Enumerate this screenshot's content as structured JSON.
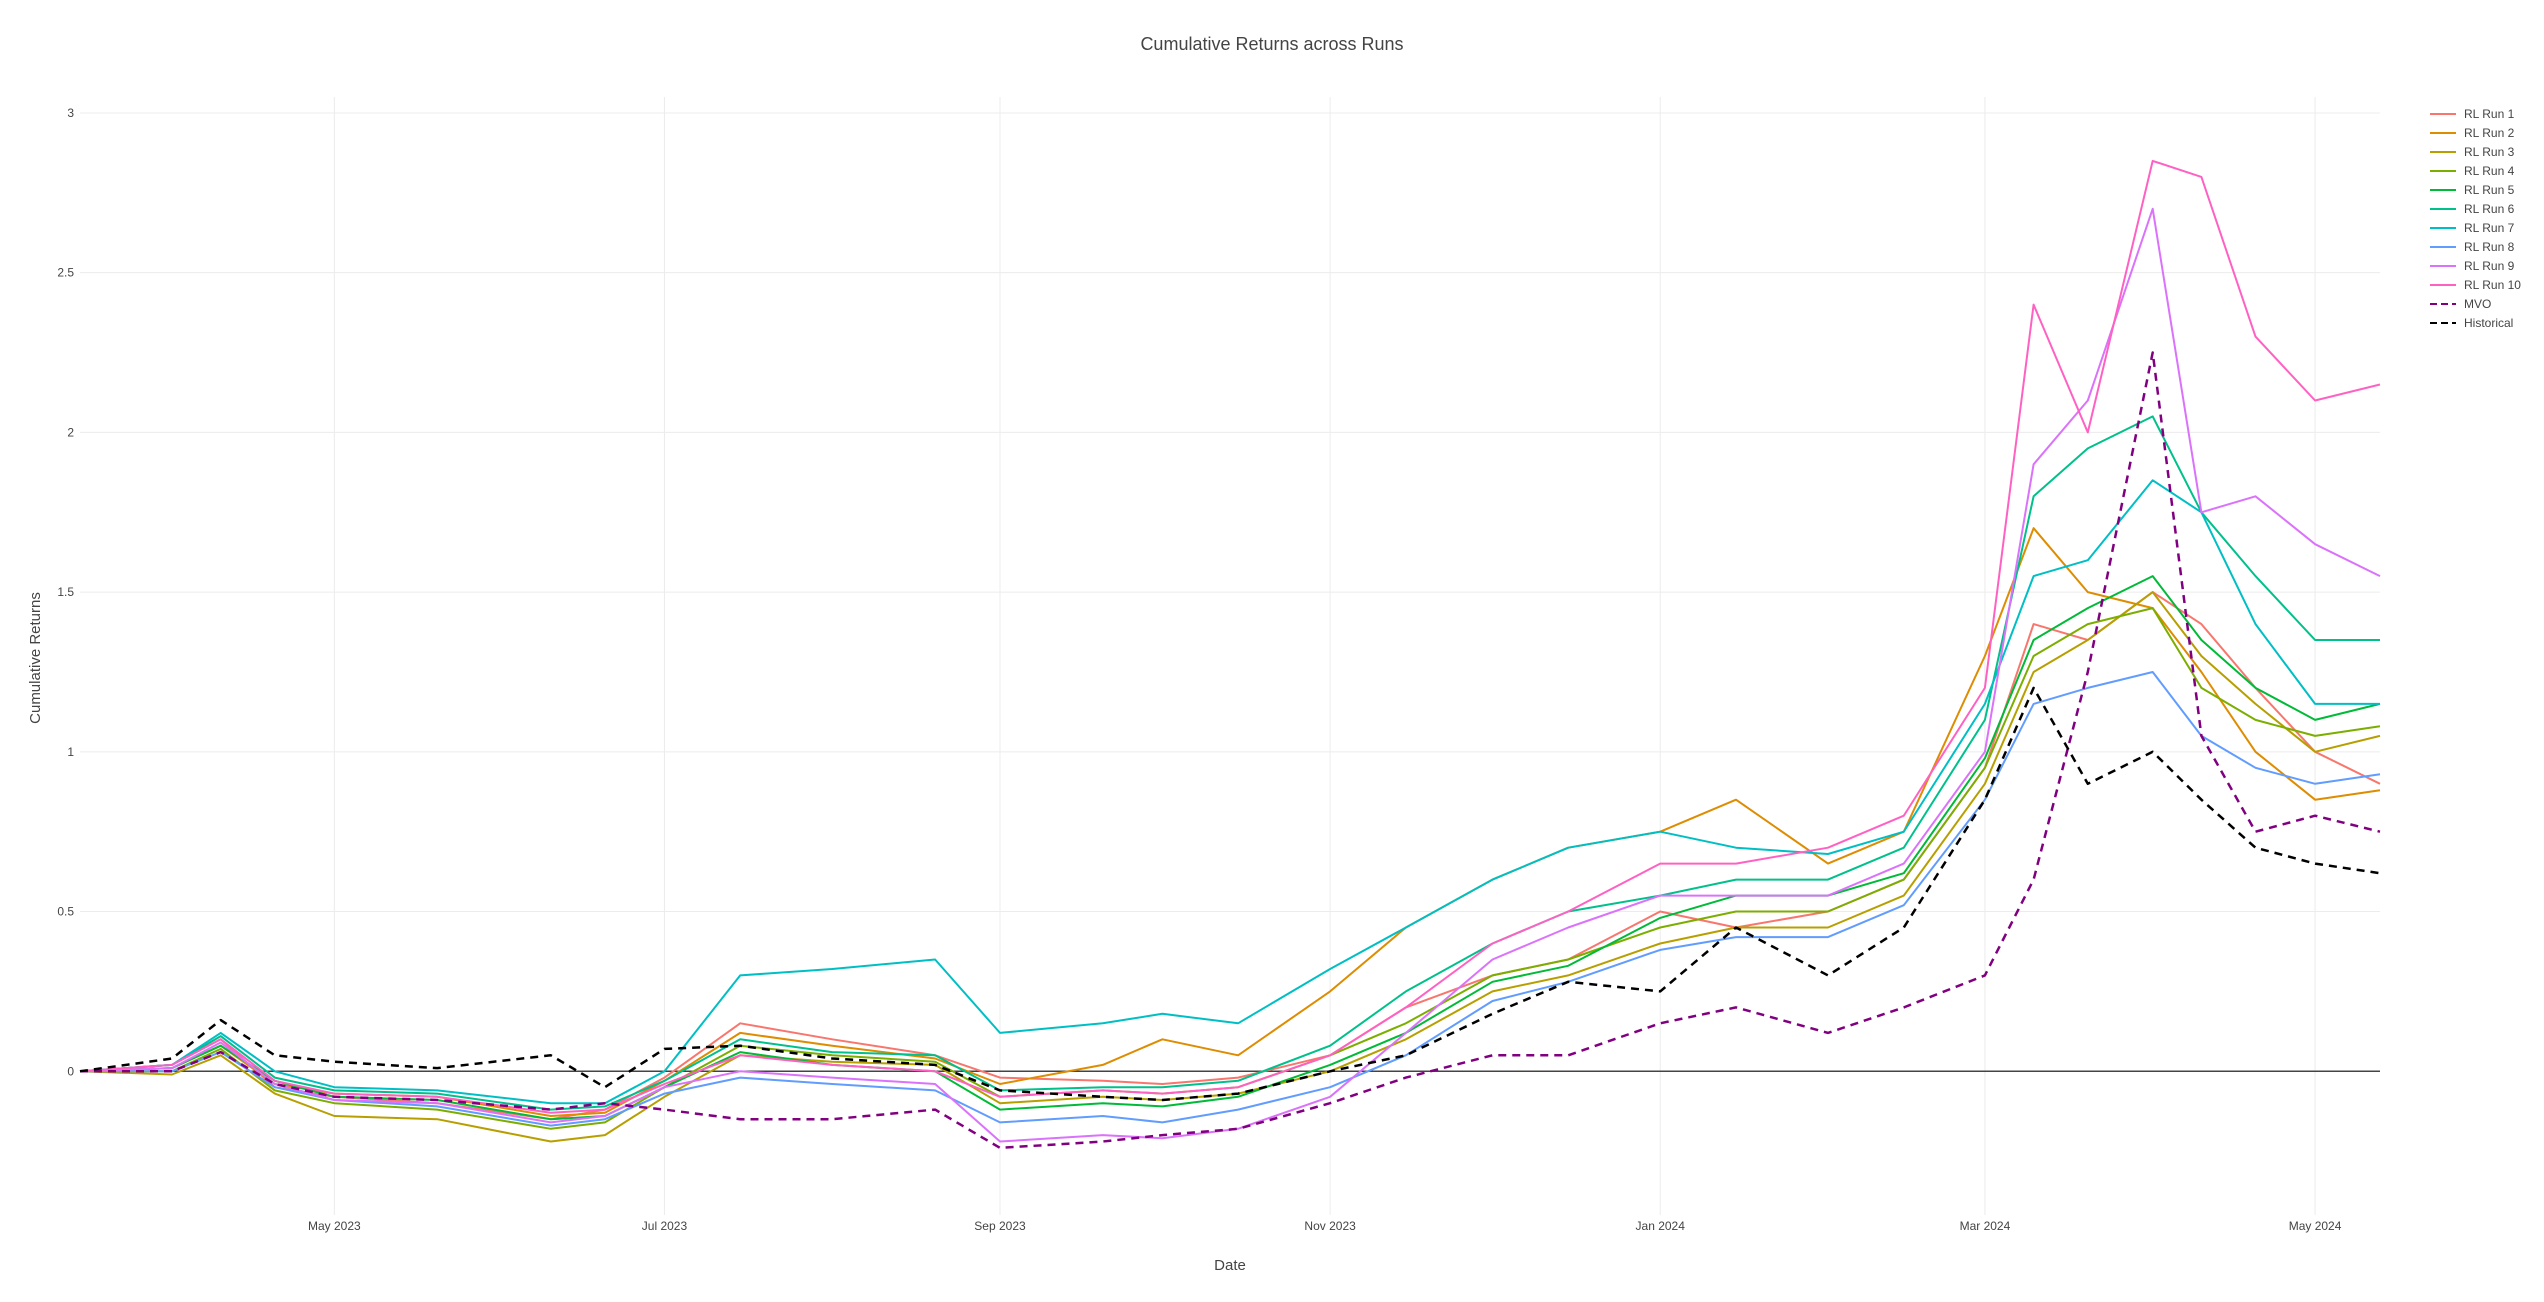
{
  "chart_data": {
    "type": "line",
    "title": "Cumulative Returns across Runs",
    "xlabel": "Date",
    "ylabel": "Cumulative Returns",
    "x_range": [
      "2023-03-15",
      "2024-05-13"
    ],
    "ylim": [
      -0.45,
      3.05
    ],
    "x_ticks": [
      {
        "date": "2023-05-01",
        "label": "May 2023"
      },
      {
        "date": "2023-07-01",
        "label": "Jul 2023"
      },
      {
        "date": "2023-09-01",
        "label": "Sep 2023"
      },
      {
        "date": "2023-11-01",
        "label": "Nov 2023"
      },
      {
        "date": "2024-01-01",
        "label": "Jan 2024"
      },
      {
        "date": "2024-03-01",
        "label": "Mar 2024"
      },
      {
        "date": "2024-05-01",
        "label": "May 2024"
      }
    ],
    "y_ticks": [
      {
        "value": 0,
        "label": "0"
      },
      {
        "value": 0.5,
        "label": "0.5"
      },
      {
        "value": 1,
        "label": "1"
      },
      {
        "value": 1.5,
        "label": "1.5"
      },
      {
        "value": 2,
        "label": "2"
      },
      {
        "value": 2.5,
        "label": "2.5"
      },
      {
        "value": 3,
        "label": "3"
      }
    ],
    "grid": true,
    "zero_line": true,
    "legend_position": "top-right",
    "dates": [
      "2023-03-15",
      "2023-04-01",
      "2023-04-10",
      "2023-04-20",
      "2023-05-01",
      "2023-05-20",
      "2023-06-10",
      "2023-06-20",
      "2023-07-01",
      "2023-07-15",
      "2023-08-01",
      "2023-08-20",
      "2023-09-01",
      "2023-09-20",
      "2023-10-01",
      "2023-10-15",
      "2023-11-01",
      "2023-11-15",
      "2023-12-01",
      "2023-12-15",
      "2024-01-01",
      "2024-01-15",
      "2024-02-01",
      "2024-02-15",
      "2024-03-01",
      "2024-03-10",
      "2024-03-20",
      "2024-04-01",
      "2024-04-10",
      "2024-04-20",
      "2024-05-01",
      "2024-05-13"
    ],
    "series": [
      {
        "name": "RL Run 1",
        "color": "#f8766d",
        "dash": "solid",
        "values": [
          0,
          0.02,
          0.1,
          -0.05,
          -0.08,
          -0.1,
          -0.15,
          -0.12,
          -0.02,
          0.15,
          0.1,
          0.05,
          -0.02,
          -0.03,
          -0.04,
          -0.02,
          0.05,
          0.2,
          0.3,
          0.35,
          0.5,
          0.45,
          0.5,
          0.6,
          0.95,
          1.4,
          1.35,
          1.5,
          1.4,
          1.2,
          1.0,
          0.9
        ]
      },
      {
        "name": "RL Run 2",
        "color": "#de8c00",
        "dash": "solid",
        "values": [
          0,
          0.01,
          0.08,
          -0.04,
          -0.07,
          -0.08,
          -0.14,
          -0.13,
          -0.03,
          0.12,
          0.08,
          0.04,
          -0.04,
          0.02,
          0.1,
          0.05,
          0.25,
          0.45,
          0.6,
          0.7,
          0.75,
          0.85,
          0.65,
          0.75,
          1.3,
          1.7,
          1.5,
          1.45,
          1.25,
          1.0,
          0.85,
          0.88
        ]
      },
      {
        "name": "RL Run 3",
        "color": "#b79f00",
        "dash": "solid",
        "values": [
          0,
          -0.01,
          0.05,
          -0.07,
          -0.14,
          -0.15,
          -0.22,
          -0.2,
          -0.08,
          0.05,
          0.03,
          0.02,
          -0.1,
          -0.08,
          -0.09,
          -0.07,
          0.0,
          0.1,
          0.25,
          0.3,
          0.4,
          0.45,
          0.45,
          0.55,
          0.9,
          1.25,
          1.35,
          1.5,
          1.3,
          1.15,
          1.0,
          1.05
        ]
      },
      {
        "name": "RL Run 4",
        "color": "#7cae00",
        "dash": "solid",
        "values": [
          0,
          0.0,
          0.07,
          -0.06,
          -0.1,
          -0.12,
          -0.18,
          -0.16,
          -0.05,
          0.08,
          0.05,
          0.03,
          -0.08,
          -0.06,
          -0.07,
          -0.05,
          0.05,
          0.15,
          0.3,
          0.35,
          0.45,
          0.5,
          0.5,
          0.6,
          0.95,
          1.3,
          1.4,
          1.45,
          1.2,
          1.1,
          1.05,
          1.08
        ]
      },
      {
        "name": "RL Run 5",
        "color": "#00ba38",
        "dash": "solid",
        "values": [
          0,
          0.01,
          0.08,
          -0.03,
          -0.08,
          -0.09,
          -0.15,
          -0.14,
          -0.05,
          0.06,
          0.02,
          0.0,
          -0.12,
          -0.1,
          -0.11,
          -0.08,
          0.02,
          0.12,
          0.28,
          0.33,
          0.48,
          0.55,
          0.55,
          0.62,
          0.98,
          1.35,
          1.45,
          1.55,
          1.35,
          1.2,
          1.1,
          1.15
        ]
      },
      {
        "name": "RL Run 6",
        "color": "#00c08b",
        "dash": "solid",
        "values": [
          0,
          0.02,
          0.11,
          -0.02,
          -0.06,
          -0.07,
          -0.12,
          -0.11,
          -0.03,
          0.1,
          0.06,
          0.05,
          -0.06,
          -0.05,
          -0.05,
          -0.03,
          0.08,
          0.25,
          0.4,
          0.5,
          0.55,
          0.6,
          0.6,
          0.7,
          1.1,
          1.8,
          1.95,
          2.05,
          1.75,
          1.55,
          1.35,
          1.35
        ]
      },
      {
        "name": "RL Run 7",
        "color": "#00bfc4",
        "dash": "solid",
        "values": [
          0,
          0.02,
          0.12,
          0.0,
          -0.05,
          -0.06,
          -0.1,
          -0.1,
          0.0,
          0.3,
          0.32,
          0.35,
          0.12,
          0.15,
          0.18,
          0.15,
          0.32,
          0.45,
          0.6,
          0.7,
          0.75,
          0.7,
          0.68,
          0.75,
          1.15,
          1.55,
          1.6,
          1.85,
          1.75,
          1.4,
          1.15,
          1.15
        ]
      },
      {
        "name": "RL Run 8",
        "color": "#619cff",
        "dash": "solid",
        "values": [
          0,
          0.0,
          0.06,
          -0.05,
          -0.09,
          -0.11,
          -0.17,
          -0.15,
          -0.07,
          -0.02,
          -0.04,
          -0.06,
          -0.16,
          -0.14,
          -0.16,
          -0.12,
          -0.05,
          0.05,
          0.22,
          0.28,
          0.38,
          0.42,
          0.42,
          0.52,
          0.85,
          1.15,
          1.2,
          1.25,
          1.05,
          0.95,
          0.9,
          0.93
        ]
      },
      {
        "name": "RL Run 9",
        "color": "#db72fb",
        "dash": "solid",
        "values": [
          0,
          0.01,
          0.09,
          -0.04,
          -0.09,
          -0.1,
          -0.16,
          -0.14,
          -0.05,
          0.0,
          -0.02,
          -0.04,
          -0.22,
          -0.2,
          -0.21,
          -0.18,
          -0.08,
          0.12,
          0.35,
          0.45,
          0.55,
          0.55,
          0.55,
          0.65,
          1.0,
          1.9,
          2.1,
          2.7,
          1.75,
          1.8,
          1.65,
          1.55
        ]
      },
      {
        "name": "RL Run 10",
        "color": "#ff61c3",
        "dash": "solid",
        "values": [
          0,
          0.02,
          0.1,
          -0.03,
          -0.07,
          -0.08,
          -0.13,
          -0.12,
          -0.04,
          0.05,
          0.02,
          0.0,
          -0.08,
          -0.06,
          -0.07,
          -0.05,
          0.05,
          0.2,
          0.4,
          0.5,
          0.65,
          0.65,
          0.7,
          0.8,
          1.2,
          2.4,
          2.0,
          2.85,
          2.8,
          2.3,
          2.1,
          2.15
        ]
      },
      {
        "name": "MVO",
        "color": "#800080",
        "dash": "dashed",
        "values": [
          0,
          0.0,
          0.06,
          -0.04,
          -0.08,
          -0.09,
          -0.12,
          -0.1,
          -0.12,
          -0.15,
          -0.15,
          -0.12,
          -0.24,
          -0.22,
          -0.2,
          -0.18,
          -0.1,
          -0.02,
          0.05,
          0.05,
          0.15,
          0.2,
          0.12,
          0.2,
          0.3,
          0.6,
          1.25,
          2.25,
          1.05,
          0.75,
          0.8,
          0.75
        ]
      },
      {
        "name": "Historical",
        "color": "#000000",
        "dash": "dashed",
        "values": [
          0,
          0.04,
          0.16,
          0.05,
          0.03,
          0.01,
          0.05,
          -0.05,
          0.07,
          0.08,
          0.04,
          0.02,
          -0.06,
          -0.08,
          -0.09,
          -0.07,
          0.0,
          0.05,
          0.18,
          0.28,
          0.25,
          0.45,
          0.3,
          0.45,
          0.85,
          1.2,
          0.9,
          1.0,
          0.85,
          0.7,
          0.65,
          0.62
        ]
      }
    ]
  }
}
